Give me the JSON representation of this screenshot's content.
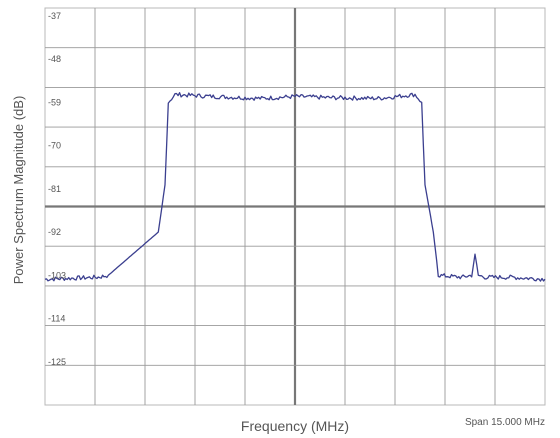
{
  "chart_data": {
    "type": "line",
    "title": "",
    "xlabel": "Frequency (MHz)",
    "ylabel": "Power Spectrum Magnitude (dB)",
    "span_label": "Span 15.000 MHz",
    "y_ticks": [
      "-37",
      "-48",
      "-59",
      "-70",
      "-81",
      "-92",
      "-103",
      "-114",
      "-125"
    ],
    "y_tick_values": [
      -37,
      -48,
      -59,
      -70,
      -81,
      -92,
      -103,
      -114,
      -125
    ],
    "ylim": [
      -136,
      -35
    ],
    "xlim": [
      -7.5,
      7.5
    ],
    "grid": true,
    "x_divisions": 10,
    "y_divisions": 10,
    "series": [
      {
        "color": "#3b3f8f",
        "x": [
          -7.5,
          -5.9,
          -5.6,
          -4.1,
          -3.9,
          -3.8,
          -3.6,
          -2.5,
          -1.0,
          0.0,
          1.0,
          2.5,
          3.6,
          3.8,
          3.9,
          4.15,
          4.3,
          5.0,
          5.3,
          5.4,
          5.5,
          5.7,
          6.5,
          7.5
        ],
        "y": [
          -104.0,
          -103.5,
          -103.0,
          -92.0,
          -80.0,
          -59.0,
          -57.0,
          -57.5,
          -58.0,
          -57.5,
          -57.8,
          -58.0,
          -57.0,
          -59.0,
          -80.0,
          -92.0,
          -103.0,
          -103.5,
          -103.0,
          -98.0,
          -103.0,
          -103.5,
          -103.5,
          -104.0
        ]
      }
    ],
    "colors": {
      "trace": "#3b3f8f",
      "grid": "#999999",
      "center_lines": "#777777",
      "background": "#ffffff"
    }
  }
}
